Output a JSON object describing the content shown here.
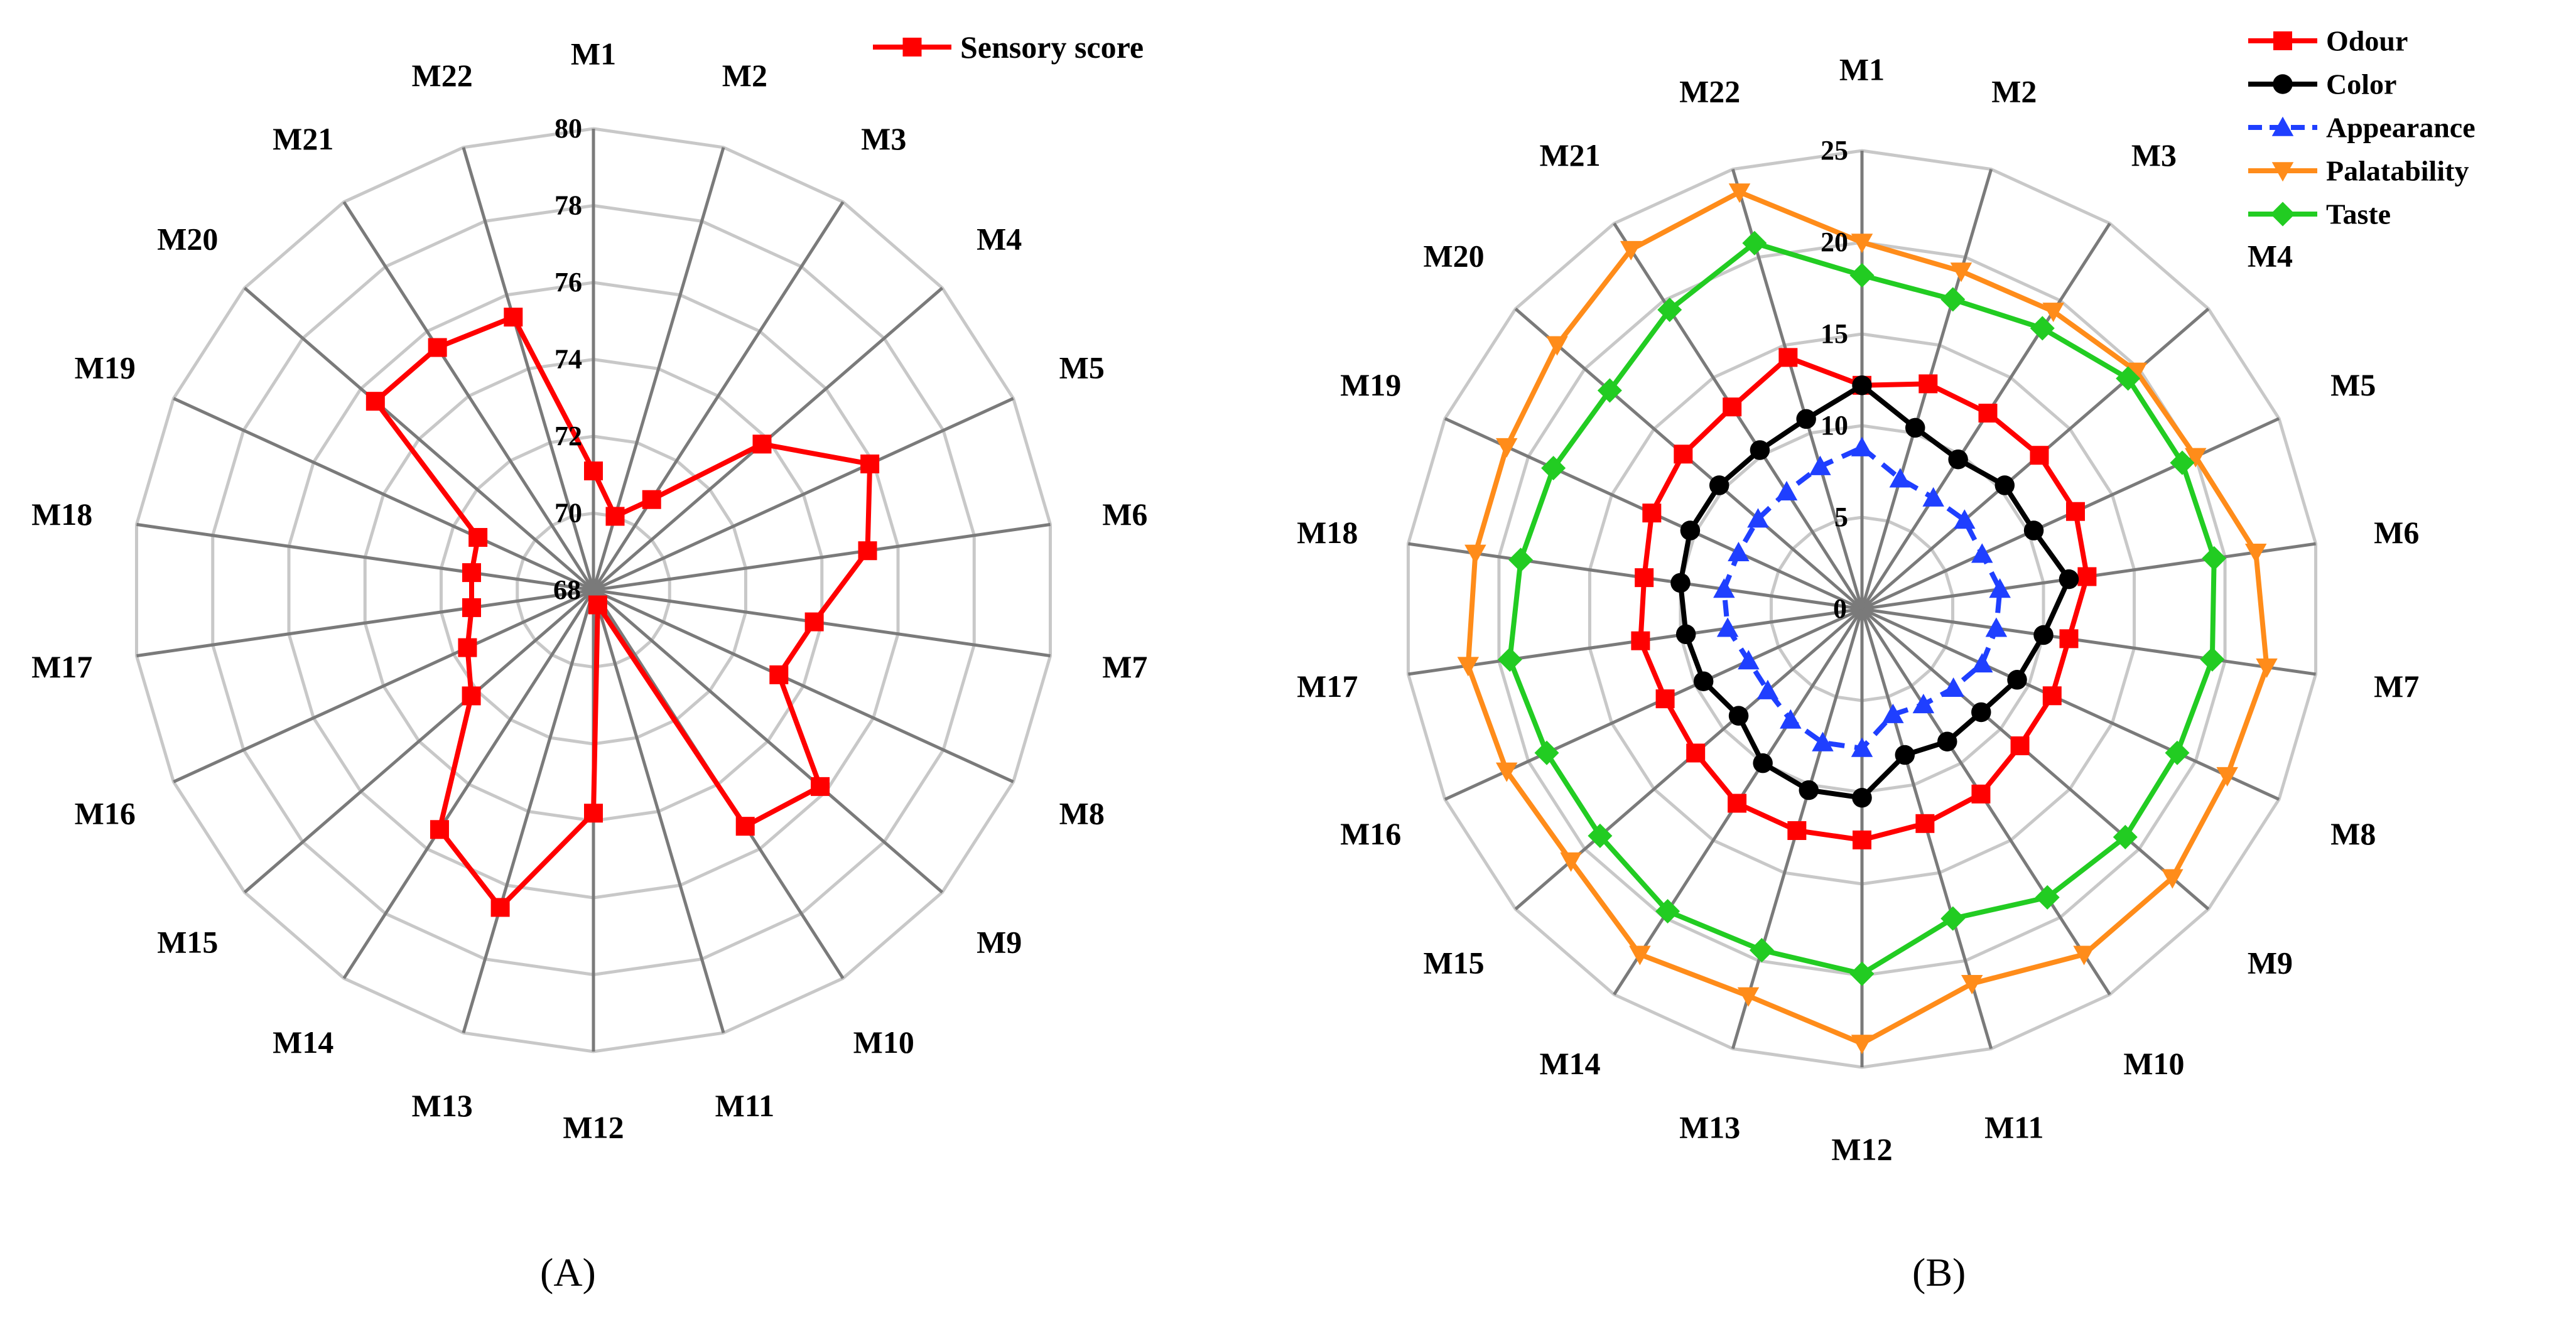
{
  "chart_data": [
    {
      "type": "radar",
      "panel_label": "(A)",
      "categories": [
        "M1",
        "M2",
        "M3",
        "M4",
        "M5",
        "M6",
        "M7",
        "M8",
        "M9",
        "M10",
        "M11",
        "M12",
        "M13",
        "M14",
        "M15",
        "M16",
        "M17",
        "M18",
        "M19",
        "M20",
        "M21",
        "M22"
      ],
      "r_range": [
        68,
        80
      ],
      "r_ticks": [
        "68",
        "70",
        "72",
        "74",
        "76",
        "78",
        "80"
      ],
      "grid": true,
      "legend_position": "top-right",
      "series": [
        {
          "name": "Sensory score",
          "color": "#ff0000",
          "marker": "square",
          "line_style": "solid",
          "values": [
            71.1,
            70.0,
            70.8,
            73.8,
            75.9,
            75.2,
            73.8,
            73.3,
            75.8,
            75.3,
            68.4,
            73.8,
            76.6,
            75.4,
            72.2,
            71.6,
            71.2,
            71.2,
            71.3,
            75.5,
            75.5,
            75.4
          ]
        }
      ]
    },
    {
      "type": "radar",
      "panel_label": "(B)",
      "categories": [
        "M1",
        "M2",
        "M3",
        "M4",
        "M5",
        "M6",
        "M7",
        "M8",
        "M9",
        "M10",
        "M11",
        "M12",
        "M13",
        "M14",
        "M15",
        "M16",
        "M17",
        "M18",
        "M19",
        "M20",
        "M21",
        "M22"
      ],
      "r_range": [
        0,
        25
      ],
      "r_ticks": [
        "0",
        "5",
        "10",
        "15",
        "20",
        "25"
      ],
      "grid": true,
      "legend_position": "top-right",
      "series": [
        {
          "name": "Odour",
          "color": "#ff0000",
          "marker": "square",
          "line_style": "solid",
          "values": [
            12.2,
            12.8,
            12.7,
            12.8,
            12.8,
            12.4,
            11.4,
            11.4,
            11.4,
            12.0,
            12.2,
            12.6,
            12.6,
            12.6,
            12.0,
            11.8,
            12.2,
            12.0,
            12.6,
            12.9,
            13.1,
            14.3
          ]
        },
        {
          "name": "Color",
          "color": "#000000",
          "marker": "circle",
          "line_style": "solid",
          "values": [
            12.2,
            10.3,
            9.7,
            10.3,
            10.3,
            11.4,
            10.0,
            9.3,
            8.6,
            8.6,
            8.3,
            10.3,
            10.3,
            10.0,
            8.9,
            9.5,
            9.7,
            10.0,
            10.3,
            10.3,
            10.3,
            10.8
          ]
        },
        {
          "name": "Appearance",
          "color": "#1f3fff",
          "marker": "triangle-up",
          "line_style": "dashed",
          "values": [
            8.8,
            7.4,
            7.2,
            7.4,
            7.2,
            7.6,
            7.4,
            7.2,
            6.6,
            6.2,
            6.0,
            7.6,
            7.6,
            7.2,
            6.8,
            6.8,
            7.4,
            7.6,
            7.4,
            7.5,
            7.6,
            8.1
          ]
        },
        {
          "name": "Palatability",
          "color": "#ff8c1a",
          "marker": "triangle-down",
          "line_style": "solid",
          "values": [
            20.0,
            19.2,
            19.3,
            19.8,
            20.0,
            21.7,
            22.3,
            21.9,
            22.4,
            22.4,
            21.3,
            23.7,
            22.0,
            22.4,
            21.0,
            21.3,
            21.7,
            21.3,
            21.3,
            22.0,
            23.3,
            23.7
          ]
        },
        {
          "name": "Taste",
          "color": "#22cc22",
          "marker": "diamond",
          "line_style": "solid",
          "values": [
            18.2,
            17.6,
            18.2,
            19.2,
            19.2,
            19.4,
            19.3,
            18.9,
            19.0,
            18.7,
            17.6,
            19.9,
            19.4,
            19.6,
            18.9,
            18.9,
            19.4,
            18.8,
            18.5,
            18.2,
            19.4,
            20.8
          ]
        }
      ]
    }
  ]
}
